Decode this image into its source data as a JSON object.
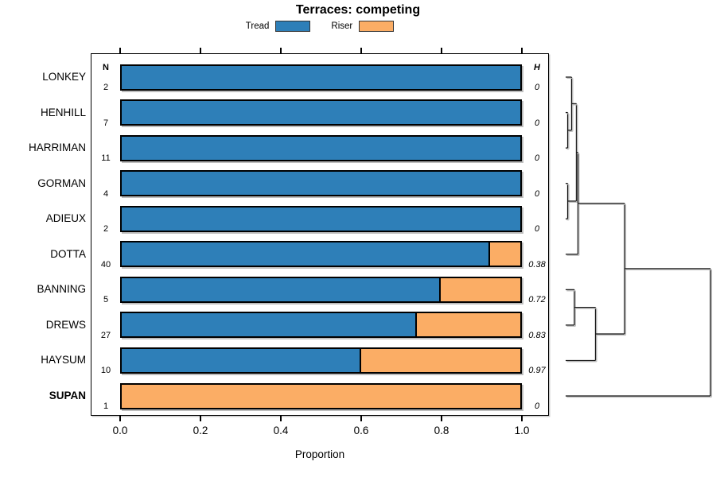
{
  "chart_data": {
    "type": "bar",
    "orientation": "horizontal_stacked",
    "title": "Terraces: competing",
    "xlabel": "Proportion",
    "xlim": [
      0,
      1
    ],
    "x_ticks": [
      {
        "value": 0.0,
        "label": "0.0"
      },
      {
        "value": 0.2,
        "label": "0.2"
      },
      {
        "value": 0.4,
        "label": "0.4"
      },
      {
        "value": 0.6,
        "label": "0.6"
      },
      {
        "value": 0.8,
        "label": "0.8"
      },
      {
        "value": 1.0,
        "label": "1.0"
      }
    ],
    "legend": {
      "position": "top",
      "items": [
        {
          "label": "Tread",
          "color": "#2E7FB8"
        },
        {
          "label": "Riser",
          "color": "#FBAD65"
        }
      ]
    },
    "columns": {
      "left_header": "N",
      "right_header": "H"
    },
    "rows": [
      {
        "label": "LONKEY",
        "n": "2",
        "h": "0",
        "tread": 1.0,
        "riser": 0.0,
        "bold": false
      },
      {
        "label": "HENHILL",
        "n": "7",
        "h": "0",
        "tread": 1.0,
        "riser": 0.0,
        "bold": false
      },
      {
        "label": "HARRIMAN",
        "n": "11",
        "h": "0",
        "tread": 1.0,
        "riser": 0.0,
        "bold": false
      },
      {
        "label": "GORMAN",
        "n": "4",
        "h": "0",
        "tread": 1.0,
        "riser": 0.0,
        "bold": false
      },
      {
        "label": "ADIEUX",
        "n": "2",
        "h": "0",
        "tread": 1.0,
        "riser": 0.0,
        "bold": false
      },
      {
        "label": "DOTTA",
        "n": "40",
        "h": "0.38",
        "tread": 0.925,
        "riser": 0.075,
        "bold": false
      },
      {
        "label": "BANNING",
        "n": "5",
        "h": "0.72",
        "tread": 0.8,
        "riser": 0.2,
        "bold": false
      },
      {
        "label": "DREWS",
        "n": "27",
        "h": "0.83",
        "tread": 0.741,
        "riser": 0.259,
        "bold": false
      },
      {
        "label": "HAYSUM",
        "n": "10",
        "h": "0.97",
        "tread": 0.6,
        "riser": 0.4,
        "bold": false
      },
      {
        "label": "SUPAN",
        "n": "1",
        "h": "0",
        "tread": 0.0,
        "riser": 1.0,
        "bold": true
      }
    ],
    "bar_colors": {
      "tread": "#2E7FB8",
      "riser": "#FBAD65",
      "border": "#000000"
    },
    "dendrogram": {
      "position": "right",
      "tree": {
        "h": 1.0,
        "c": [
          {
            "h": 0.407,
            "c": [
              {
                "h": 0.085,
                "c": [
                  {
                    "h": 0.074,
                    "c": [
                      {
                        "h": 0.041,
                        "c": [
                          {
                            "leaf": "LONKEY"
                          },
                          {
                            "h": 0.014,
                            "c": [
                              {
                                "leaf": "HENHILL"
                              },
                              {
                                "leaf": "HARRIMAN"
                              }
                            ]
                          }
                        ]
                      },
                      {
                        "h": 0.014,
                        "c": [
                          {
                            "leaf": "GORMAN"
                          },
                          {
                            "leaf": "ADIEUX"
                          }
                        ]
                      }
                    ]
                  },
                  {
                    "leaf": "DOTTA"
                  }
                ]
              },
              {
                "h": 0.206,
                "c": [
                  {
                    "h": 0.06,
                    "c": [
                      {
                        "leaf": "BANNING"
                      },
                      {
                        "leaf": "DREWS"
                      }
                    ]
                  },
                  {
                    "leaf": "HAYSUM"
                  }
                ]
              }
            ]
          },
          {
            "leaf": "SUPAN"
          }
        ]
      }
    }
  }
}
